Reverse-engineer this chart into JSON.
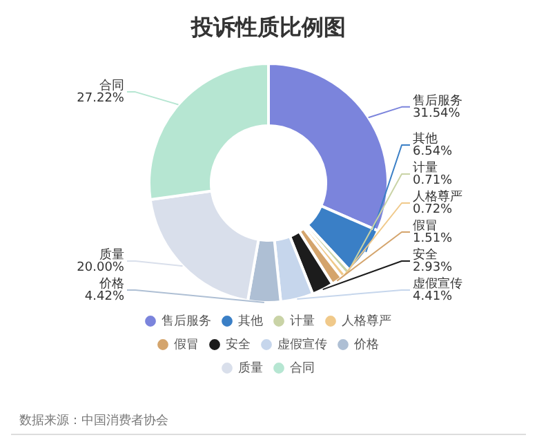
{
  "chart_data": {
    "type": "donut",
    "title": "投诉性质比例图",
    "categories": [
      "售后服务",
      "其他",
      "计量",
      "人格尊严",
      "假冒",
      "安全",
      "虚假宣传",
      "价格",
      "质量",
      "合同"
    ],
    "values": [
      31.54,
      6.54,
      0.71,
      0.72,
      1.51,
      2.93,
      4.41,
      4.42,
      20.0,
      27.22
    ],
    "value_labels": [
      "31.54%",
      "6.54%",
      "0.71%",
      "0.72%",
      "1.51%",
      "2.93%",
      "4.41%",
      "4.42%",
      "20.00%",
      "27.22%"
    ],
    "colors": [
      "#7b84dc",
      "#3a7fc6",
      "#c9d3a6",
      "#f0c98a",
      "#d4a46c",
      "#1c1c1c",
      "#c6d6ec",
      "#aebfd4",
      "#d9dfeb",
      "#b6e6d2"
    ],
    "legend": "bottom",
    "annotations": [
      "数据来源：中国消费者协会"
    ]
  }
}
